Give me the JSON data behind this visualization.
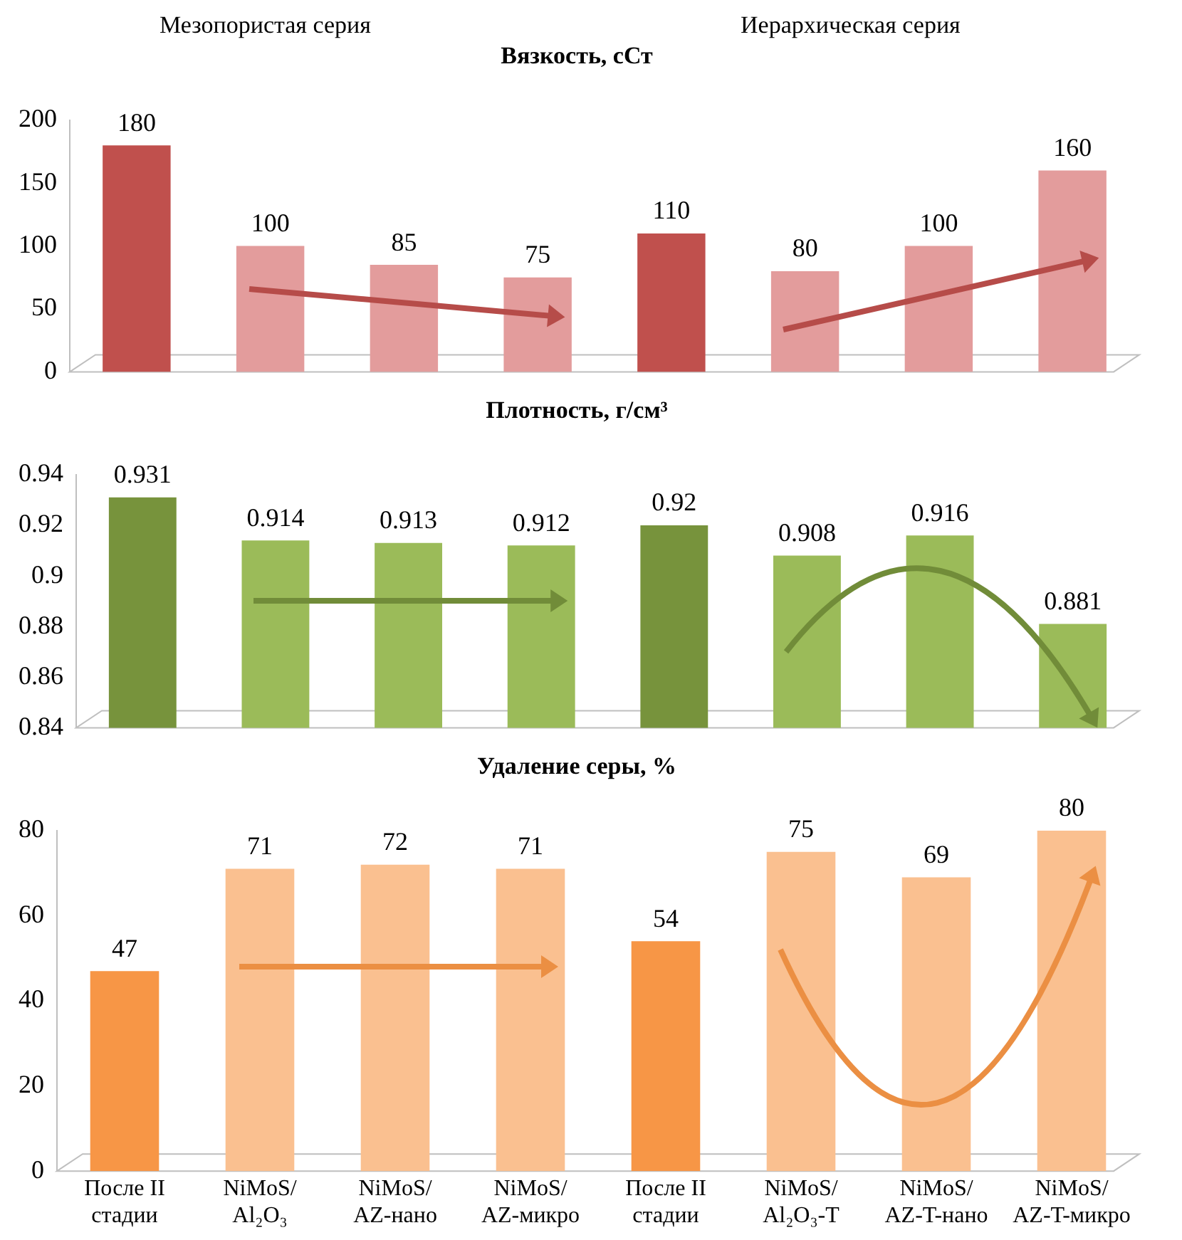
{
  "chart_data": [
    {
      "type": "bar",
      "title": "Вязкость, сСт",
      "categories": [
        null,
        null,
        null,
        null,
        null,
        null,
        null,
        null
      ],
      "values": [
        180,
        100,
        85,
        75,
        110,
        80,
        100,
        160
      ],
      "colors": [
        "#c0504d",
        "#e39c9c",
        "#e39c9c",
        "#e39c9c",
        "#c0504d",
        "#e39c9c",
        "#e39c9c",
        "#e39c9c"
      ],
      "ylim": [
        0,
        200
      ],
      "yticks": [
        0,
        50,
        100,
        150,
        200
      ],
      "grid": false,
      "legend": false,
      "data_labels": true,
      "tick_labels": "y",
      "annotations": [
        "Мезопористая серия",
        "Иерархическая серия"
      ]
    },
    {
      "type": "bar",
      "title": "Плотность, г/см³",
      "categories": [
        null,
        null,
        null,
        null,
        null,
        null,
        null,
        null
      ],
      "values": [
        0.931,
        0.914,
        0.913,
        0.912,
        0.92,
        0.908,
        0.916,
        0.881
      ],
      "colors": [
        "#77933c",
        "#9bbb59",
        "#9bbb59",
        "#9bbb59",
        "#77933c",
        "#9bbb59",
        "#9bbb59",
        "#9bbb59"
      ],
      "ylim": [
        0.84,
        0.94
      ],
      "yticks": [
        0.84,
        0.86,
        0.88,
        0.9,
        0.92,
        0.94
      ],
      "grid": false,
      "legend": false,
      "data_labels": true,
      "tick_labels": "y"
    },
    {
      "type": "bar",
      "title": "Удаление серы, %",
      "categories": [
        "После II\nстадии",
        "NiMoS/\nAl₂O₃",
        "NiMoS/\nAZ-нано",
        "NiMoS/\nAZ-микро",
        "После II\nстадии",
        "NiMoS/\nAl₂O₃-T",
        "NiMoS/\nAZ-T-нано",
        "NiMoS/\nAZ-T-микро"
      ],
      "values": [
        47,
        71,
        72,
        71,
        54,
        75,
        69,
        80
      ],
      "colors": [
        "#f79646",
        "#fac090",
        "#fac090",
        "#fac090",
        "#f79646",
        "#fac090",
        "#fac090",
        "#fac090"
      ],
      "ylim": [
        0,
        80
      ],
      "yticks": [
        0,
        20,
        40,
        60,
        80
      ],
      "grid": false,
      "legend": false,
      "data_labels": true
    }
  ]
}
